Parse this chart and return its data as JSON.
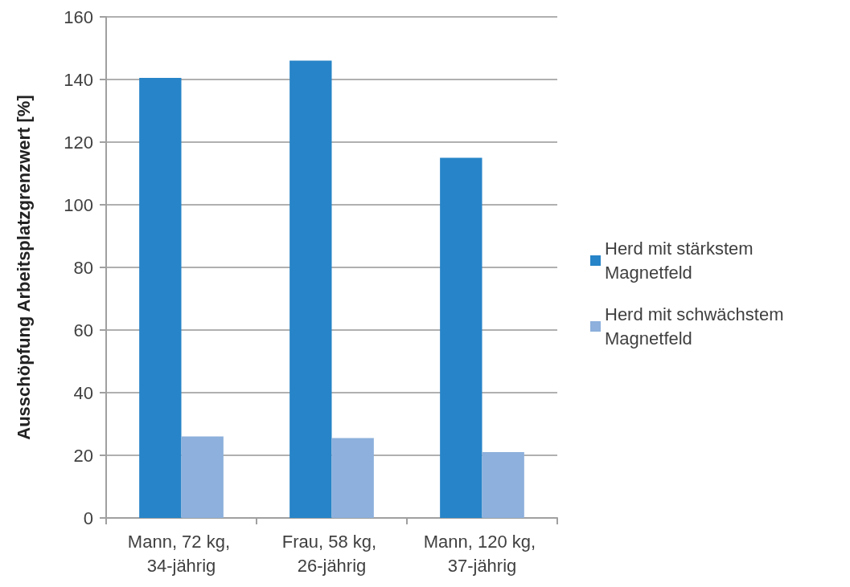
{
  "chart_data": {
    "type": "bar",
    "ylabel": "Ausschöpfung Arbeitsplatzgrenzwert [%]",
    "categories": [
      "Mann, 72 kg, 34-jährig",
      "Frau, 58 kg, 26-jährig",
      "Mann, 120 kg, 37-jährig"
    ],
    "series": [
      {
        "name": "Herd mit stärkstem Magnetfeld",
        "color": "#2784c8",
        "values": [
          140.5,
          146,
          115
        ]
      },
      {
        "name": "Herd mit schwächstem Magnetfeld",
        "color": "#8db0dc",
        "values": [
          26,
          25.5,
          21
        ]
      }
    ],
    "ylim": [
      0,
      160
    ],
    "yticks": [
      0,
      20,
      40,
      60,
      80,
      100,
      120,
      140,
      160
    ],
    "grid": "y",
    "legend": "right"
  }
}
